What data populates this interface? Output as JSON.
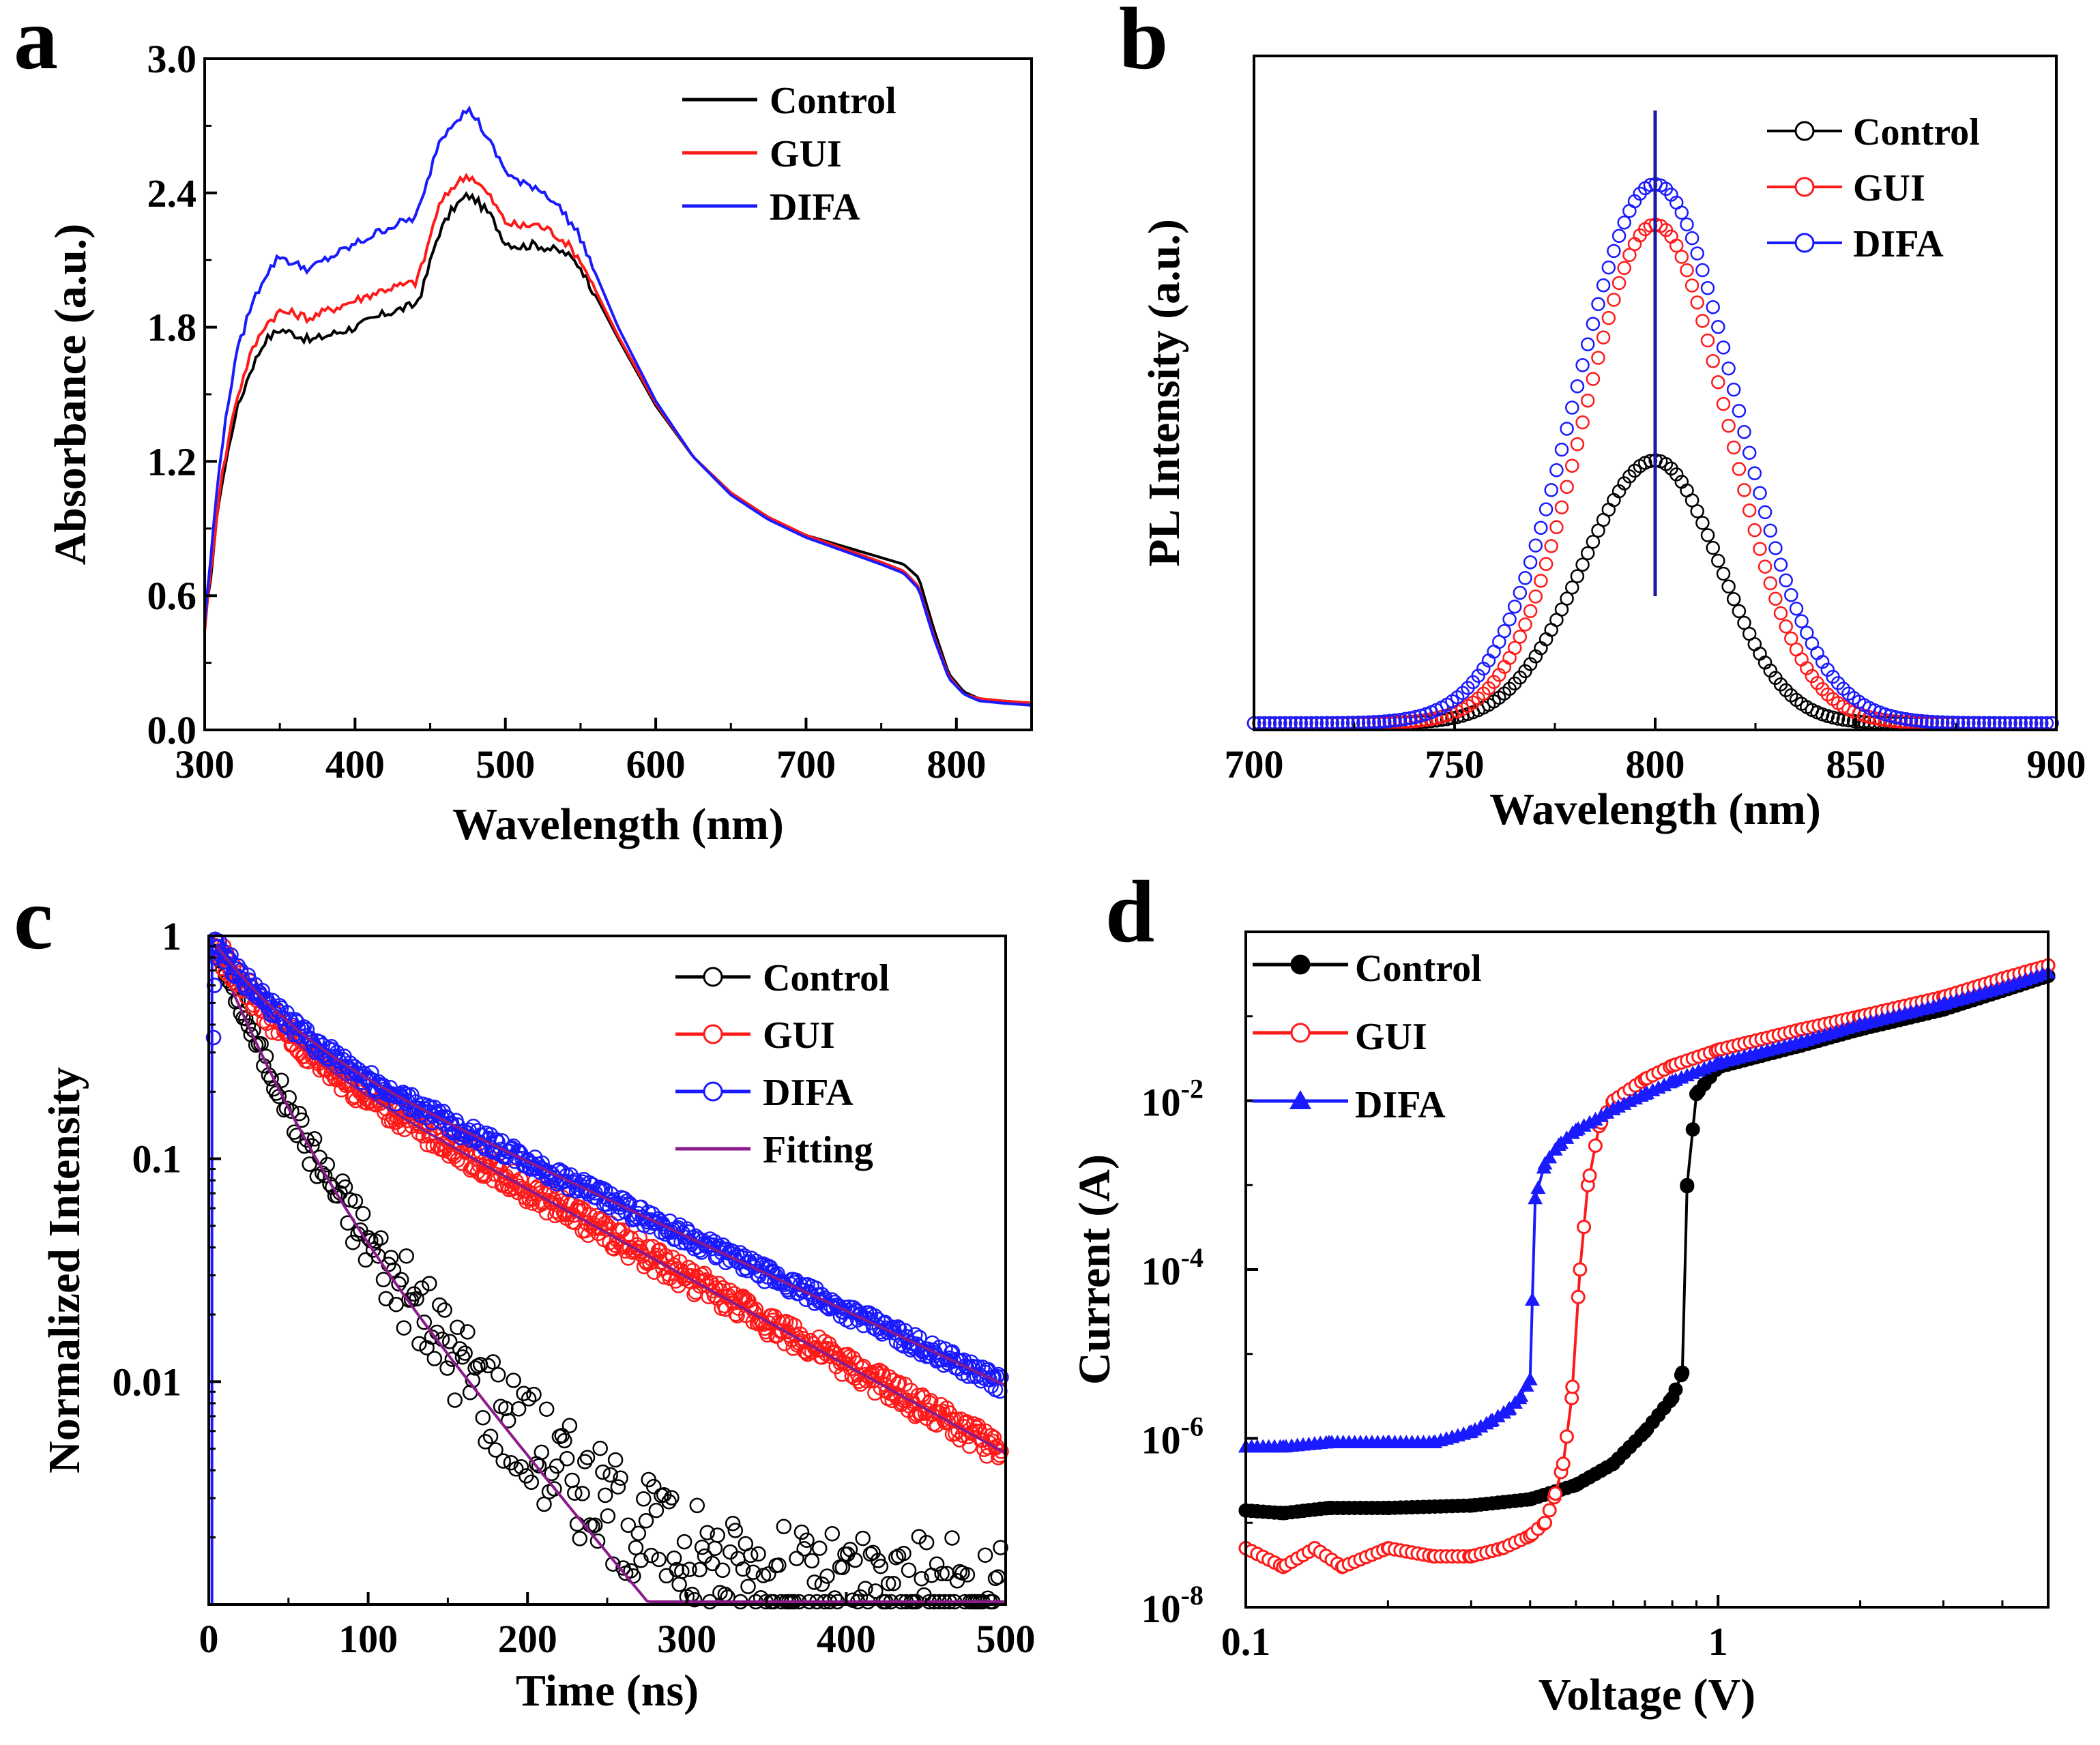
{
  "figure": {
    "panels": [
      "a",
      "b",
      "c",
      "d"
    ]
  },
  "colors": {
    "control": "#000000",
    "gui": "#ff1a1a",
    "difa": "#1a1aff",
    "fitting": "#8b1a8b",
    "peak_line": "#1a1aa0"
  },
  "chart_data": [
    {
      "panel": "a",
      "type": "line",
      "xlabel": "Wavelength (nm)",
      "ylabel": "Absorbance (a.u.)",
      "xlim": [
        300,
        850
      ],
      "ylim": [
        0,
        3.0
      ],
      "xticks": [
        300,
        400,
        500,
        600,
        700,
        800
      ],
      "yticks": [
        0.0,
        0.6,
        1.2,
        1.8,
        2.4,
        3.0
      ],
      "ytick_labels": [
        "0.0",
        "0.6",
        "1.2",
        "1.8",
        "2.4",
        "3.0"
      ],
      "legend": [
        "Control",
        "GUI",
        "DIFA"
      ],
      "legend_position": "top-right",
      "series": [
        {
          "name": "Control",
          "x": [
            300,
            310,
            320,
            330,
            340,
            350,
            360,
            370,
            380,
            400,
            420,
            440,
            445,
            455,
            465,
            475,
            480,
            490,
            500,
            510,
            520,
            530,
            540,
            550,
            575,
            600,
            625,
            650,
            675,
            700,
            725,
            750,
            765,
            775,
            785,
            795,
            805,
            815,
            830,
            850
          ],
          "y": [
            0.45,
            1.05,
            1.4,
            1.6,
            1.74,
            1.79,
            1.77,
            1.74,
            1.76,
            1.8,
            1.86,
            1.9,
            1.97,
            2.21,
            2.33,
            2.39,
            2.37,
            2.3,
            2.18,
            2.16,
            2.17,
            2.15,
            2.13,
            2.07,
            1.75,
            1.45,
            1.22,
            1.06,
            0.95,
            0.87,
            0.82,
            0.77,
            0.74,
            0.68,
            0.45,
            0.25,
            0.17,
            0.14,
            0.13,
            0.12
          ]
        },
        {
          "name": "GUI",
          "x": [
            300,
            310,
            320,
            330,
            340,
            350,
            360,
            370,
            380,
            400,
            420,
            440,
            445,
            455,
            465,
            475,
            480,
            490,
            500,
            510,
            520,
            530,
            540,
            550,
            575,
            600,
            625,
            650,
            675,
            700,
            725,
            750,
            765,
            775,
            785,
            795,
            805,
            815,
            830,
            850
          ],
          "y": [
            0.45,
            1.08,
            1.45,
            1.67,
            1.81,
            1.87,
            1.86,
            1.84,
            1.87,
            1.92,
            1.97,
            2.0,
            2.08,
            2.33,
            2.43,
            2.48,
            2.46,
            2.38,
            2.27,
            2.25,
            2.26,
            2.23,
            2.18,
            2.1,
            1.76,
            1.46,
            1.22,
            1.06,
            0.95,
            0.87,
            0.81,
            0.75,
            0.71,
            0.64,
            0.42,
            0.24,
            0.16,
            0.14,
            0.13,
            0.12
          ]
        },
        {
          "name": "DIFA",
          "x": [
            300,
            310,
            320,
            330,
            340,
            350,
            360,
            370,
            380,
            400,
            420,
            440,
            445,
            455,
            465,
            475,
            480,
            490,
            500,
            510,
            520,
            530,
            540,
            550,
            575,
            600,
            625,
            650,
            675,
            700,
            725,
            750,
            765,
            775,
            785,
            795,
            805,
            815,
            830,
            850
          ],
          "y": [
            0.48,
            1.2,
            1.65,
            1.88,
            2.03,
            2.12,
            2.08,
            2.06,
            2.1,
            2.17,
            2.24,
            2.29,
            2.37,
            2.62,
            2.72,
            2.77,
            2.74,
            2.62,
            2.5,
            2.44,
            2.43,
            2.38,
            2.3,
            2.2,
            1.8,
            1.47,
            1.22,
            1.05,
            0.94,
            0.86,
            0.8,
            0.74,
            0.7,
            0.63,
            0.41,
            0.23,
            0.16,
            0.13,
            0.12,
            0.11
          ]
        }
      ]
    },
    {
      "panel": "b",
      "type": "scatter",
      "xlabel": "Wavelength (nm)",
      "ylabel": "PL Intensity (a.u.)",
      "xlim": [
        700,
        900
      ],
      "ylim": [
        0,
        1.0
      ],
      "xticks": [
        700,
        750,
        800,
        850,
        900
      ],
      "yticks": [],
      "legend": [
        "Control",
        "GUI",
        "DIFA"
      ],
      "legend_position": "top-right",
      "peak_marker_x": 800,
      "series": [
        {
          "name": "Control",
          "peak": 800,
          "amplitude": 0.39,
          "sigma_left": 18,
          "sigma_right": 16
        },
        {
          "name": "GUI",
          "peak": 800,
          "amplitude": 0.74,
          "sigma_left": 18,
          "sigma_right": 18
        },
        {
          "name": "DIFA",
          "peak": 800,
          "amplitude": 0.8,
          "sigma_left": 20,
          "sigma_right": 20
        }
      ]
    },
    {
      "panel": "c",
      "type": "scatter",
      "xlabel": "Time (ns)",
      "ylabel": "Normalized Intensity",
      "xlim": [
        0,
        500
      ],
      "yscale": "log",
      "ylim": [
        0.001,
        1
      ],
      "xticks": [
        0,
        100,
        200,
        300,
        400,
        500
      ],
      "yticks": [
        0.01,
        0.1,
        1
      ],
      "ytick_labels": [
        "0.01",
        "0.1",
        "1"
      ],
      "legend": [
        "Control",
        "GUI",
        "DIFA",
        "Fitting"
      ],
      "legend_position": "top-right",
      "series": [
        {
          "name": "Control",
          "decay": [
            {
              "a": 0.75,
              "tau": 22
            },
            {
              "a": 0.25,
              "tau": 50
            }
          ],
          "floor": 0.0011,
          "noise_decades": 0.25
        },
        {
          "name": "GUI",
          "decay": [
            {
              "a": 0.55,
              "tau": 25
            },
            {
              "a": 0.45,
              "tau": 110
            }
          ],
          "floor": 0.0,
          "noise_decades": 0.06
        },
        {
          "name": "DIFA",
          "decay": [
            {
              "a": 0.55,
              "tau": 30
            },
            {
              "a": 0.45,
              "tau": 130
            }
          ],
          "floor": 0.0,
          "noise_decades": 0.04
        },
        {
          "name": "Fitting"
        }
      ]
    },
    {
      "panel": "d",
      "type": "line",
      "xlabel": "Voltage (V)",
      "ylabel": "Current (A)",
      "xscale": "log",
      "yscale": "log",
      "xlim": [
        0.1,
        5
      ],
      "ylim": [
        1e-08,
        1
      ],
      "xticks": [
        0.1,
        1
      ],
      "xtick_labels": [
        "0.1",
        "1"
      ],
      "yticks": [
        1e-08,
        1e-06,
        0.0001,
        0.01
      ],
      "ytick_labels": [
        {
          "base": "10",
          "exp": "-8"
        },
        {
          "base": "10",
          "exp": "-6"
        },
        {
          "base": "10",
          "exp": "-4"
        },
        {
          "base": "10",
          "exp": "-2"
        }
      ],
      "legend": [
        "Control",
        "GUI",
        "DIFA"
      ],
      "legend_position": "top-left",
      "series": [
        {
          "name": "Control",
          "marker": "circle",
          "x": [
            0.1,
            0.12,
            0.15,
            0.2,
            0.3,
            0.4,
            0.5,
            0.6,
            0.7,
            0.8,
            0.84,
            0.86,
            0.9,
            1.0,
            1.5,
            2,
            3,
            4,
            5
          ],
          "y": [
            1.4e-07,
            1.3e-07,
            1.5e-07,
            1.5e-07,
            1.6e-07,
            1.9e-07,
            2.8e-07,
            5e-07,
            1.2e-06,
            3e-06,
            6e-06,
            0.001,
            0.012,
            0.025,
            0.045,
            0.07,
            0.12,
            0.2,
            0.3
          ]
        },
        {
          "name": "GUI",
          "marker": "circle",
          "x": [
            0.1,
            0.12,
            0.14,
            0.16,
            0.2,
            0.25,
            0.3,
            0.35,
            0.4,
            0.43,
            0.45,
            0.47,
            0.49,
            0.51,
            0.53,
            0.56,
            0.6,
            0.7,
            0.8,
            1.0,
            1.5,
            2,
            3,
            4,
            5
          ],
          "y": [
            5e-08,
            3e-08,
            5e-08,
            3e-08,
            5e-08,
            4e-08,
            4e-08,
            5e-08,
            7e-08,
            1e-07,
            2e-07,
            5e-07,
            3e-06,
            0.0001,
            0.001,
            0.005,
            0.01,
            0.018,
            0.026,
            0.04,
            0.07,
            0.1,
            0.17,
            0.28,
            0.4
          ]
        },
        {
          "name": "DIFA",
          "marker": "triangle",
          "x": [
            0.1,
            0.12,
            0.15,
            0.2,
            0.25,
            0.3,
            0.33,
            0.36,
            0.38,
            0.4,
            0.41,
            0.43,
            0.46,
            0.5,
            0.55,
            0.6,
            0.7,
            0.8,
            1.0,
            1.5,
            2,
            3,
            4,
            5
          ],
          "y": [
            8e-07,
            8e-07,
            9e-07,
            9e-07,
            9e-07,
            1.2e-06,
            1.6e-06,
            2.2e-06,
            3e-06,
            5e-06,
            0.0007,
            0.0018,
            0.003,
            0.0045,
            0.006,
            0.008,
            0.012,
            0.017,
            0.028,
            0.05,
            0.08,
            0.14,
            0.22,
            0.33
          ]
        }
      ]
    }
  ]
}
